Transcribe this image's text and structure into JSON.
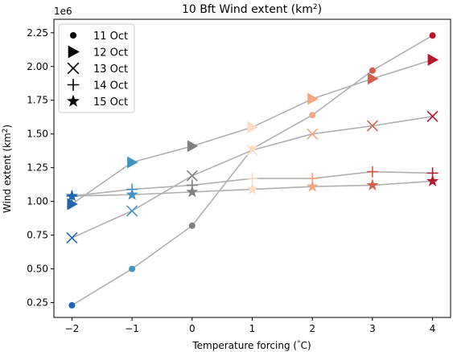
{
  "chart_data": {
    "type": "scatter",
    "title": "10 Bft Wind extent (km",
    "title_sup": "2",
    "title_end": ")",
    "xlabel": "Temperature forcing (°C)",
    "ylabel": "Wind extent (km²)",
    "y_offset_label": "1e6",
    "x": [
      -2,
      -1,
      0,
      1,
      2,
      3,
      4
    ],
    "xlim": [
      -2.3,
      4.3
    ],
    "ylim": [
      0.14,
      2.35
    ],
    "x_ticks": [
      -2,
      -1,
      0,
      1,
      2,
      3,
      4
    ],
    "y_ticks": [
      0.25,
      0.5,
      0.75,
      1.0,
      1.25,
      1.5,
      1.75,
      2.0,
      2.25
    ],
    "y_tick_labels": [
      "0.25",
      "0.50",
      "0.75",
      "1.00",
      "1.25",
      "1.50",
      "1.75",
      "2.00",
      "2.25"
    ],
    "point_colors": [
      "#2166ac",
      "#4393c3",
      "#808080",
      "#fddbc7",
      "#f4a582",
      "#d6604d",
      "#b2182b"
    ],
    "line_color": "#b0b0b0",
    "legend_position": "upper-left",
    "series": [
      {
        "name": "11 Oct",
        "marker": "circle",
        "values": [
          0.23,
          0.5,
          0.82,
          1.39,
          1.64,
          1.97,
          2.23
        ]
      },
      {
        "name": "12 Oct",
        "marker": "triangle-right",
        "values": [
          0.98,
          1.29,
          1.41,
          1.55,
          1.76,
          1.91,
          2.05
        ]
      },
      {
        "name": "13 Oct",
        "marker": "x",
        "values": [
          0.73,
          0.93,
          1.19,
          1.38,
          1.5,
          1.56,
          1.63
        ]
      },
      {
        "name": "14 Oct",
        "marker": "plus",
        "values": [
          1.04,
          1.09,
          1.12,
          1.17,
          1.17,
          1.22,
          1.21
        ]
      },
      {
        "name": "15 Oct",
        "marker": "star",
        "values": [
          1.04,
          1.05,
          1.07,
          1.09,
          1.11,
          1.12,
          1.15
        ]
      }
    ]
  }
}
